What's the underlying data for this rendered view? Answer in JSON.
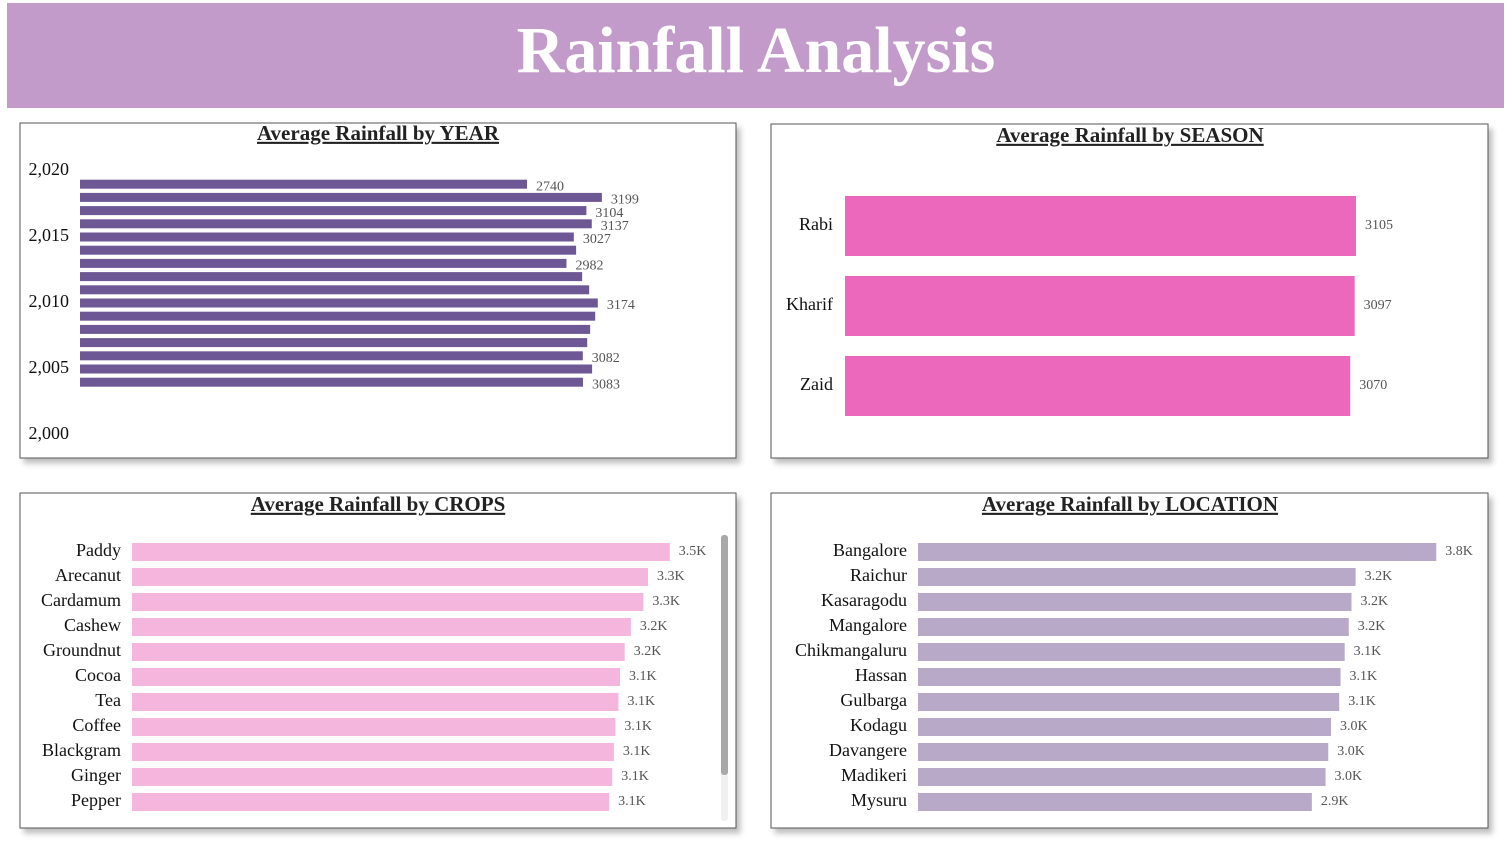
{
  "header": {
    "title": "Rainfall Analysis"
  },
  "chart_data": [
    {
      "type": "bar",
      "title": "Average Rainfall by YEAR",
      "y": [
        2019,
        2018,
        2017,
        2016,
        2015,
        2014,
        2013,
        2012,
        2011,
        2010,
        2009,
        2008,
        2007,
        2006,
        2005,
        2004
      ],
      "values": [
        2740,
        3199,
        3104,
        3137,
        3027,
        3041,
        2982,
        3078,
        3121,
        3174,
        3158,
        3127,
        3109,
        3082,
        3139,
        3083
      ],
      "value_labels": [
        "2740",
        "3199",
        "3104",
        "3137",
        "3027",
        null,
        "2982",
        null,
        null,
        "3174",
        null,
        null,
        null,
        "3082",
        null,
        "3083"
      ],
      "ylim": [
        2000,
        2020
      ],
      "yticks": [
        {
          "value": 2020,
          "label": "2,020"
        },
        {
          "value": 2015,
          "label": "2,015"
        },
        {
          "value": 2010,
          "label": "2,010"
        },
        {
          "value": 2005,
          "label": "2,005"
        },
        {
          "value": 2000,
          "label": "2,000"
        }
      ],
      "xlim": [
        0,
        3500
      ],
      "color": "#6e5795"
    },
    {
      "type": "bar",
      "title": "Average Rainfall by SEASON",
      "categories": [
        "Rabi",
        "Kharif",
        "Zaid"
      ],
      "values": [
        3105,
        3097,
        3070
      ],
      "xlim": [
        0,
        3500
      ],
      "color": "#ec68bc"
    },
    {
      "type": "bar",
      "title": "Average Rainfall by CROPS",
      "categories": [
        "Paddy",
        "Arecanut",
        "Cardamum",
        "Cashew",
        "Groundnut",
        "Cocoa",
        "Tea",
        "Coffee",
        "Blackgram",
        "Ginger",
        "Pepper"
      ],
      "values": [
        3460,
        3320,
        3290,
        3210,
        3170,
        3140,
        3130,
        3110,
        3100,
        3090,
        3070
      ],
      "value_labels": [
        "3.5K",
        "3.3K",
        "3.3K",
        "3.2K",
        "3.2K",
        "3.1K",
        "3.1K",
        "3.1K",
        "3.1K",
        "3.1K",
        "3.1K"
      ],
      "xlim": [
        0,
        3500
      ],
      "color": "#f5b6de"
    },
    {
      "type": "bar",
      "title": "Average Rainfall by LOCATION",
      "categories": [
        "Bangalore",
        "Raichur",
        "Kasaragodu",
        "Mangalore",
        "Chikmangaluru",
        "Hassan",
        "Gulbarga",
        "Kodagu",
        "Davangere",
        "Madikeri",
        "Mysuru"
      ],
      "values": [
        3790,
        3200,
        3170,
        3150,
        3120,
        3090,
        3080,
        3020,
        3000,
        2980,
        2880
      ],
      "value_labels": [
        "3.8K",
        "3.2K",
        "3.2K",
        "3.2K",
        "3.1K",
        "3.1K",
        "3.1K",
        "3.0K",
        "3.0K",
        "3.0K",
        "2.9K"
      ],
      "xlim": [
        0,
        4000
      ],
      "color": "#b9a9c9"
    }
  ]
}
